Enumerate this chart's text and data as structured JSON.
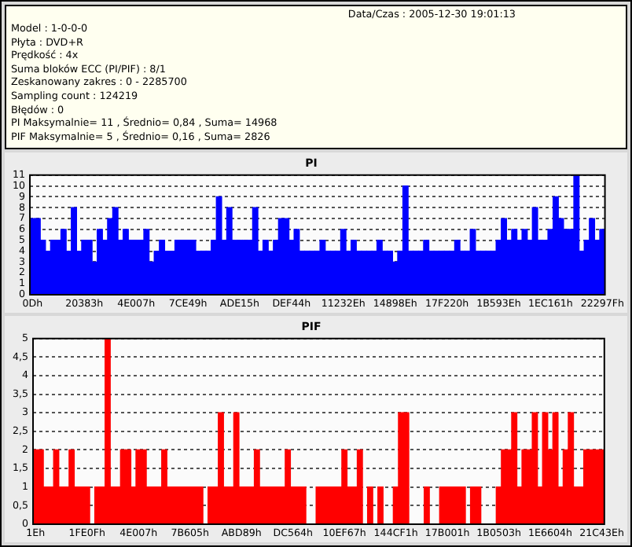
{
  "chart_data": [
    {
      "type": "other",
      "annotations": [
        "Data/Czas : 2005-12-30 19:01:13",
        "Model : 1-0-0-0",
        "Płyta : DVD+R",
        "Prędkość : 4x",
        "Suma bloków ECC (PI/PIF) : 8/1",
        "Zeskanowany zakres : 0 - 2285700",
        "Sampling count : 124219",
        "Błędów : 0",
        "PI Maksymalnie= 11 , Średnio= 0,84 , Suma= 14968",
        "PIF Maksymalnie= 5 , Średnio= 0,16 , Suma= 2826"
      ]
    },
    {
      "type": "bar",
      "title": "PI",
      "color": "#0000ff",
      "grid": "y",
      "legend": false,
      "ylim": [
        0,
        11
      ],
      "yticks": [
        0,
        1,
        2,
        3,
        4,
        5,
        6,
        7,
        8,
        9,
        10,
        11
      ],
      "categories": [
        "0Dh",
        null,
        null,
        null,
        null,
        null,
        null,
        null,
        null,
        null,
        "20383h",
        null,
        null,
        null,
        null,
        null,
        null,
        null,
        null,
        null,
        "4E007h",
        null,
        null,
        null,
        null,
        null,
        null,
        null,
        null,
        null,
        "7CE49h",
        null,
        null,
        null,
        null,
        null,
        null,
        null,
        null,
        null,
        "ADE15h",
        null,
        null,
        null,
        null,
        null,
        null,
        null,
        null,
        null,
        "DEF44h",
        null,
        null,
        null,
        null,
        null,
        null,
        null,
        null,
        null,
        "11232Eh",
        null,
        null,
        null,
        null,
        null,
        null,
        null,
        null,
        null,
        "14898Eh",
        null,
        null,
        null,
        null,
        null,
        null,
        null,
        null,
        null,
        "17F220h",
        null,
        null,
        null,
        null,
        null,
        null,
        null,
        null,
        null,
        "1B593Eh",
        null,
        null,
        null,
        null,
        null,
        null,
        null,
        null,
        null,
        "1EC161h",
        null,
        null,
        null,
        null,
        null,
        null,
        null,
        null,
        null,
        "22297Fh"
      ],
      "values": [
        7,
        7,
        5,
        4,
        5,
        5,
        6,
        4,
        8,
        4,
        5,
        5,
        3,
        6,
        5,
        7,
        8,
        5,
        6,
        5,
        5,
        5,
        6,
        3,
        4,
        5,
        4,
        4,
        5,
        5,
        5,
        5,
        4,
        4,
        4,
        5,
        9,
        5,
        8,
        5,
        5,
        5,
        5,
        8,
        4,
        5,
        4,
        5,
        7,
        7,
        5,
        6,
        4,
        4,
        4,
        4,
        5,
        4,
        4,
        4,
        6,
        4,
        5,
        4,
        4,
        4,
        4,
        5,
        4,
        4,
        3,
        4,
        10,
        4,
        4,
        4,
        5,
        4,
        4,
        4,
        4,
        4,
        5,
        4,
        4,
        6,
        4,
        4,
        4,
        4,
        5,
        7,
        5,
        6,
        5,
        6,
        5,
        8,
        5,
        5,
        6,
        9,
        7,
        6,
        6,
        11,
        4,
        5,
        7,
        5,
        6
      ]
    },
    {
      "type": "bar",
      "title": "PIF",
      "color": "#ff0000",
      "grid": "y",
      "legend": false,
      "ylim": [
        0,
        5
      ],
      "yticks": [
        0,
        {
          "value": 0.5,
          "label": "0,5"
        },
        1,
        {
          "value": 1.5,
          "label": "1,5"
        },
        2,
        {
          "value": 2.5,
          "label": "2,5"
        },
        3,
        {
          "value": 3.5,
          "label": "3,5"
        },
        4,
        {
          "value": 4.5,
          "label": "4,5"
        },
        5
      ],
      "categories": [
        "1Eh",
        null,
        null,
        null,
        null,
        null,
        null,
        null,
        null,
        null,
        "1FE0Fh",
        null,
        null,
        null,
        null,
        null,
        null,
        null,
        null,
        null,
        "4E007h",
        null,
        null,
        null,
        null,
        null,
        null,
        null,
        null,
        null,
        "7B605h",
        null,
        null,
        null,
        null,
        null,
        null,
        null,
        null,
        null,
        "ABD89h",
        null,
        null,
        null,
        null,
        null,
        null,
        null,
        null,
        null,
        "DC564h",
        null,
        null,
        null,
        null,
        null,
        null,
        null,
        null,
        null,
        "10EF67h",
        null,
        null,
        null,
        null,
        null,
        null,
        null,
        null,
        null,
        "144CF1h",
        null,
        null,
        null,
        null,
        null,
        null,
        null,
        null,
        null,
        "17B001h",
        null,
        null,
        null,
        null,
        null,
        null,
        null,
        null,
        null,
        "1B0503h",
        null,
        null,
        null,
        null,
        null,
        null,
        null,
        null,
        null,
        "1E6604h",
        null,
        null,
        null,
        null,
        null,
        null,
        null,
        null,
        null,
        "21C43Eh"
      ],
      "values": [
        2,
        2,
        1,
        1,
        2,
        1,
        1,
        2,
        1,
        1,
        1,
        0,
        1,
        1,
        5,
        1,
        1,
        2,
        2,
        1,
        2,
        2,
        1,
        1,
        1,
        2,
        1,
        1,
        1,
        1,
        1,
        1,
        1,
        0,
        1,
        1,
        3,
        1,
        1,
        3,
        1,
        1,
        1,
        2,
        1,
        1,
        1,
        1,
        1,
        2,
        1,
        1,
        1,
        0,
        0,
        1,
        1,
        1,
        1,
        1,
        2,
        1,
        1,
        2,
        0,
        1,
        0,
        1,
        0,
        0,
        1,
        3,
        3,
        0,
        0,
        0,
        1,
        0,
        0,
        1,
        1,
        1,
        1,
        1,
        0,
        1,
        1,
        0,
        0,
        0,
        1,
        2,
        2,
        3,
        1,
        2,
        2,
        3,
        1,
        3,
        2,
        3,
        1,
        2,
        3,
        1,
        1,
        2,
        2,
        2,
        2
      ]
    }
  ]
}
